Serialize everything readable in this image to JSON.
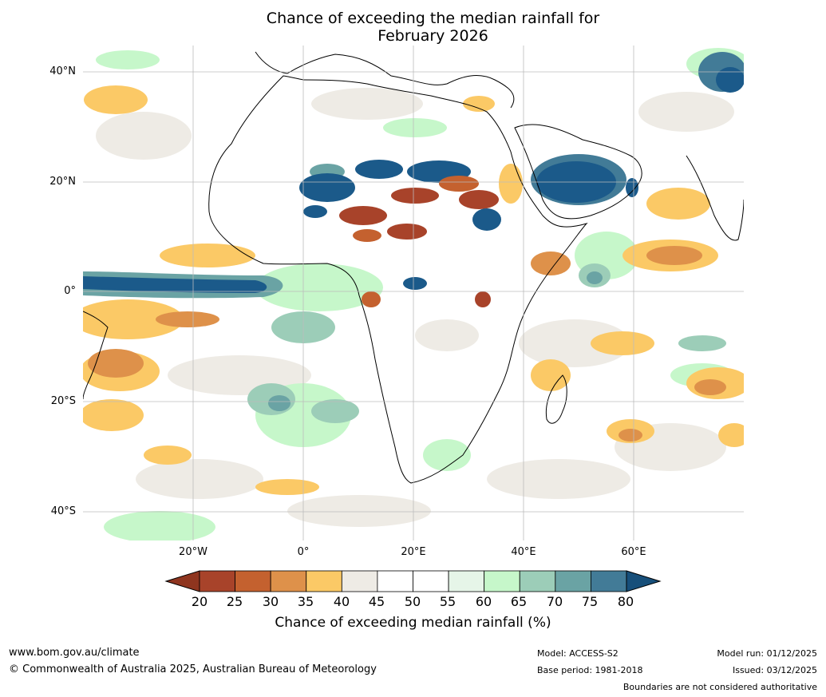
{
  "title": {
    "line1": "Chance of exceeding the median rainfall for",
    "line2": "February 2026"
  },
  "map": {
    "lat_labels": [
      "40°N",
      "20°N",
      "0°",
      "20°S",
      "40°S"
    ],
    "lon_labels": [
      "20°W",
      "0°",
      "20°E",
      "40°E",
      "60°E"
    ],
    "colors": {
      "ocean_bg": "#ffffff",
      "land_line": "#000000",
      "border_line": "#777777",
      "grid_line": "#bbbbbb"
    },
    "regions": [
      {
        "name": "equatorial-atlantic-wet-band",
        "category": "75-80",
        "color": "#1b5a8a"
      },
      {
        "name": "arabian-peninsula-wet",
        "category": "75-80",
        "color": "#1b5a8a"
      },
      {
        "name": "sahel-wet-patches",
        "category": "75-80",
        "color": "#1b5a8a"
      },
      {
        "name": "sahel-dry-patches",
        "category": "20-25",
        "color": "#a8432a"
      },
      {
        "name": "south-atlantic-dry",
        "category": "25-35",
        "color": "#cc6933"
      },
      {
        "name": "indian-ocean-dry",
        "category": "30-40",
        "color": "#e29a4a"
      },
      {
        "name": "south-atlantic-wet",
        "category": "65-75",
        "color": "#6aa3a4"
      }
    ]
  },
  "colorbar": {
    "ticks": [
      "20",
      "25",
      "30",
      "35",
      "40",
      "45",
      "50",
      "55",
      "60",
      "65",
      "70",
      "75",
      "80"
    ],
    "under_color": "#8f351f",
    "over_color": "#174f7a",
    "colors": [
      "#a8432a",
      "#c4612f",
      "#de914a",
      "#fbc966",
      "#eeebe5",
      "#ffffff",
      "#ffffff",
      "#e6f5e8",
      "#c6f7ca",
      "#9ccdb8",
      "#6aa3a4",
      "#427b97"
    ],
    "label": "Chance of exceeding median rainfall (%)"
  },
  "footer": {
    "url": "www.bom.gov.au/climate",
    "copyright": "© Commonwealth of Australia 2025, Australian Bureau of Meteorology",
    "model": "Model: ACCESS-S2",
    "base_period": "Base period: 1981-2018",
    "model_run": "Model run: 01/12/2025",
    "issued": "Issued: 03/12/2025",
    "disclaimer": "Boundaries are not considered authoritative"
  }
}
